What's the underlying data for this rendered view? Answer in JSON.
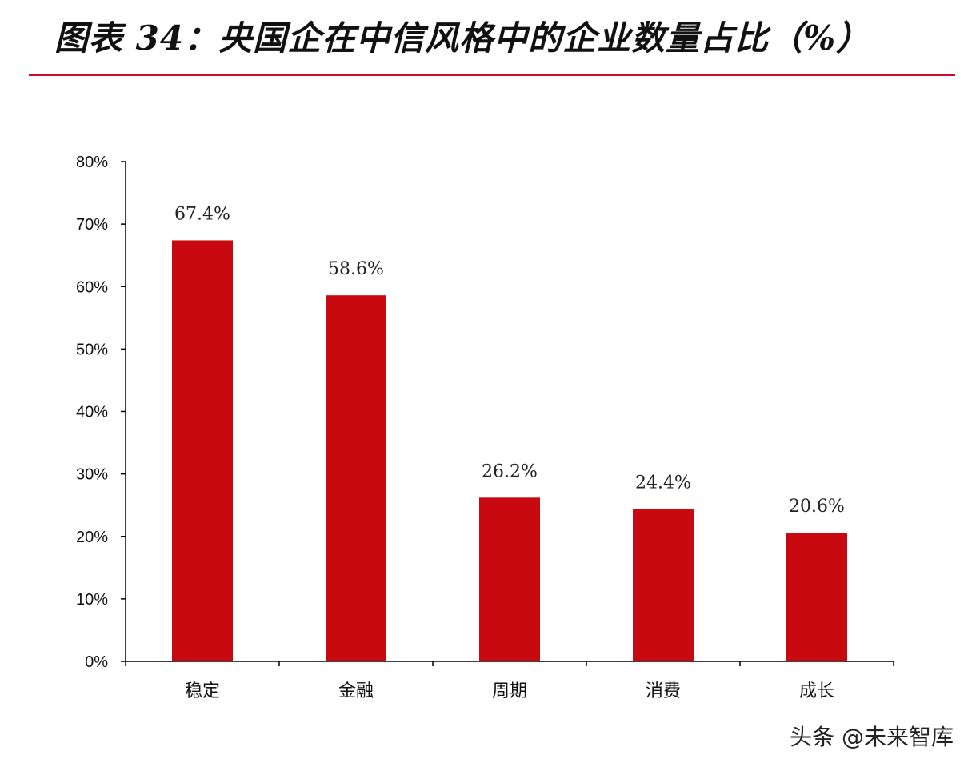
{
  "header": {
    "title": "图表 34：央国企在中信风格中的企业数量占比（%）"
  },
  "watermark": {
    "text": "头条 @未来智库"
  },
  "chart_data": {
    "type": "bar",
    "title": "图表 34：央国企在中信风格中的企业数量占比（%）",
    "xlabel": "",
    "ylabel": "",
    "categories": [
      "稳定",
      "金融",
      "周期",
      "消费",
      "成长"
    ],
    "values": [
      67.4,
      58.6,
      26.2,
      24.4,
      20.6
    ],
    "data_labels": [
      "67.4%",
      "58.6%",
      "26.2%",
      "24.4%",
      "20.6%"
    ],
    "ylim": [
      0,
      80
    ],
    "yticks": [
      0,
      10,
      20,
      30,
      40,
      50,
      60,
      70,
      80
    ],
    "ytick_labels": [
      "0%",
      "10%",
      "20%",
      "30%",
      "40%",
      "50%",
      "60%",
      "70%",
      "80%"
    ],
    "grid": false,
    "legend": "none",
    "colors": {
      "bar": "#c8090f",
      "axis": "#000000",
      "title_rule": "#c8102e"
    }
  }
}
